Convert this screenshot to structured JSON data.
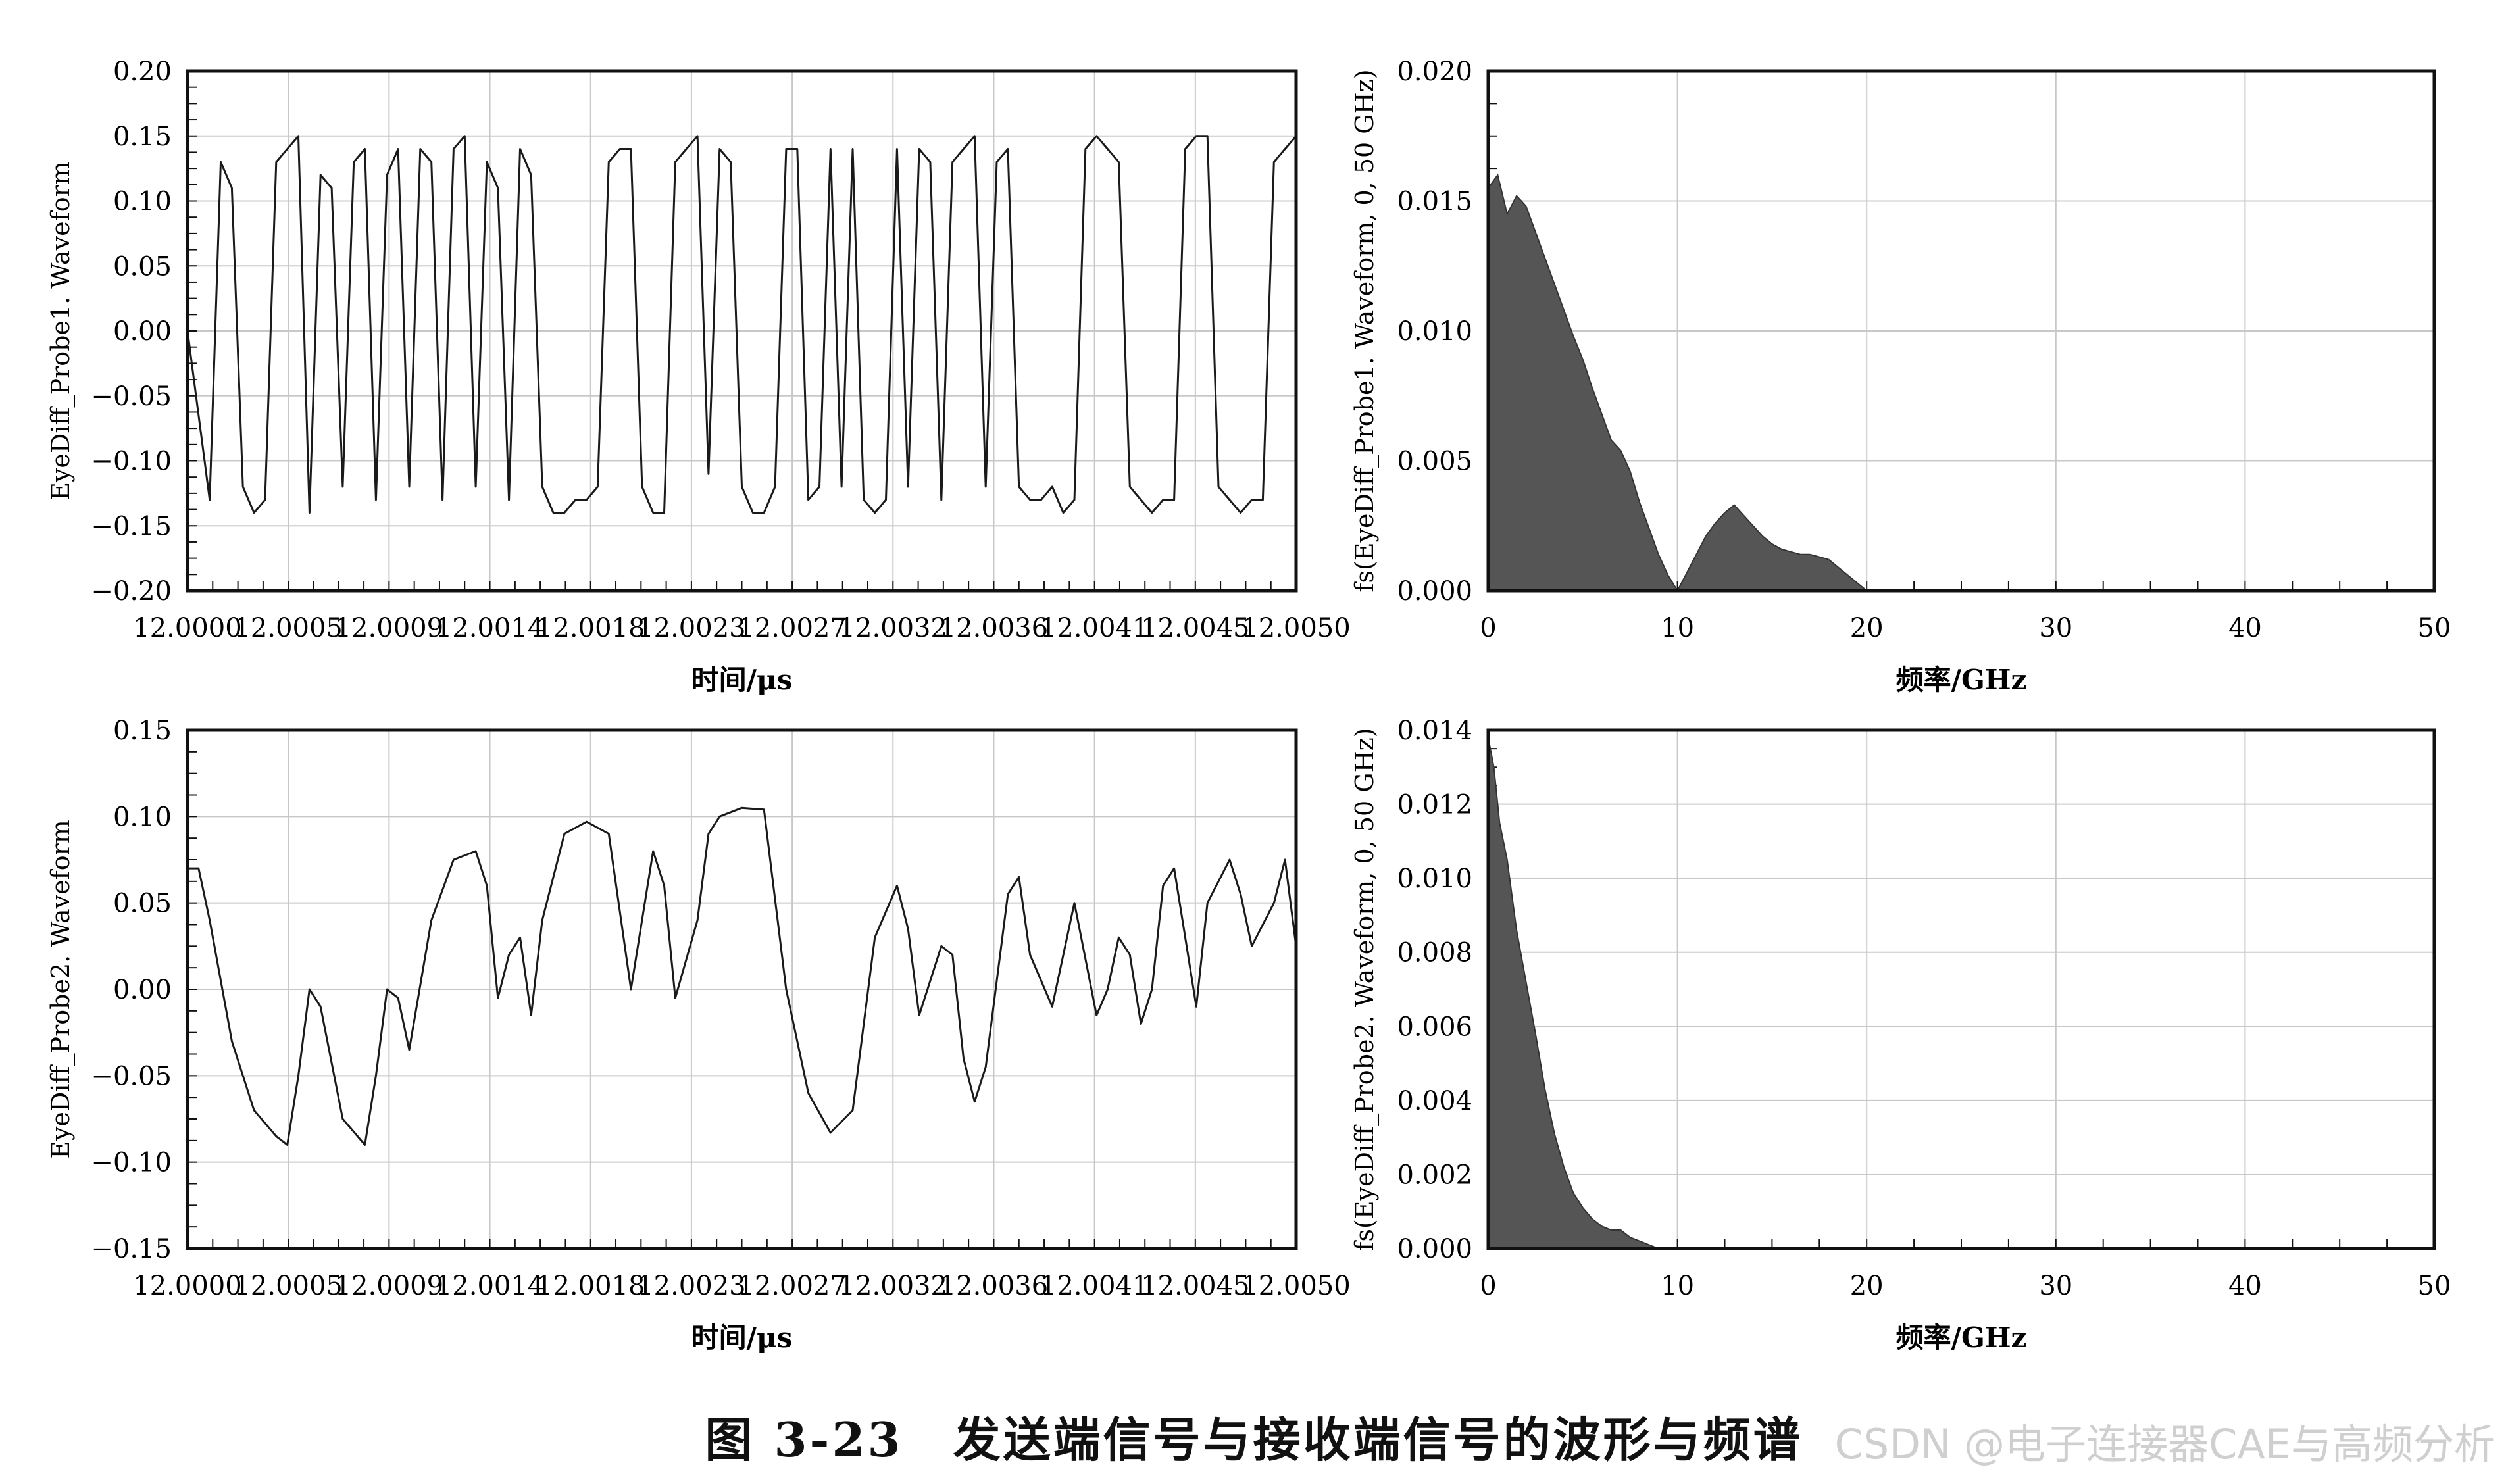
{
  "figure_caption": "图 3-23　发送端信号与接收端信号的波形与频谱",
  "watermark": "CSDN @电子连接器CAE与高频分析",
  "colors": {
    "trace": "#1a1a1a",
    "fill": "#555555",
    "grid": "#c8c8c8",
    "frame": "#111111"
  },
  "chart_data": [
    {
      "type": "line",
      "title": "",
      "xlabel": "时间/μs",
      "ylabel": "EyeDiff_Probe1. Waveform",
      "xlim": [
        12.0,
        12.005
      ],
      "ylim": [
        -0.2,
        0.2
      ],
      "grid": true,
      "x_ticks": [
        "12.0000",
        "12.0005",
        "12.0009",
        "12.0014",
        "12.0018",
        "12.0023",
        "12.0027",
        "12.0032",
        "12.0036",
        "12.0041",
        "12.0045",
        "12.0050"
      ],
      "y_ticks": [
        "0.20",
        "0.15",
        "0.10",
        "0.05",
        "0.00",
        "−0.05",
        "−0.10",
        "−0.15",
        "−0.20"
      ],
      "y_tick_values": [
        0.2,
        0.15,
        0.1,
        0.05,
        0,
        -0.05,
        -0.1,
        -0.15,
        -0.2
      ],
      "series": [
        {
          "x": [
            12.0,
            12.0001,
            12.00015,
            12.0002,
            12.00025,
            12.0003,
            12.00035,
            12.0004,
            12.00045,
            12.0005,
            12.00055,
            12.0006,
            12.00065,
            12.0007,
            12.00075,
            12.0008,
            12.00085,
            12.0009,
            12.00095,
            12.001,
            12.00105,
            12.0011,
            12.00115,
            12.0012,
            12.00125,
            12.0013,
            12.00135,
            12.0014,
            12.00145,
            12.0015,
            12.00155,
            12.0016,
            12.00165,
            12.0017,
            12.00175,
            12.0018,
            12.00185,
            12.0019,
            12.00195,
            12.002,
            12.00205,
            12.0021,
            12.00215,
            12.0022,
            12.00225,
            12.0023,
            12.00235,
            12.0024,
            12.00245,
            12.0025,
            12.00255,
            12.0026,
            12.00265,
            12.0027,
            12.00275,
            12.0028,
            12.00285,
            12.0029,
            12.00295,
            12.003,
            12.00305,
            12.0031,
            12.00315,
            12.0032,
            12.00325,
            12.0033,
            12.00335,
            12.0034,
            12.00345,
            12.0035,
            12.00355,
            12.0036,
            12.00365,
            12.0037,
            12.00375,
            12.0038,
            12.00385,
            12.0039,
            12.00395,
            12.004,
            12.00405,
            12.0041,
            12.00415,
            12.0042,
            12.00425,
            12.0043,
            12.00435,
            12.0044,
            12.00445,
            12.0045,
            12.00455,
            12.0046,
            12.00465,
            12.0047,
            12.00475,
            12.0048,
            12.00485,
            12.0049,
            12.00495,
            12.005
          ],
          "y": [
            0.0,
            -0.13,
            0.13,
            0.11,
            -0.12,
            -0.14,
            -0.13,
            0.13,
            0.14,
            0.15,
            -0.14,
            0.12,
            0.11,
            -0.12,
            0.13,
            0.14,
            -0.13,
            0.12,
            0.14,
            -0.12,
            0.14,
            0.13,
            -0.13,
            0.14,
            0.15,
            -0.12,
            0.13,
            0.11,
            -0.13,
            0.14,
            0.12,
            -0.12,
            -0.14,
            -0.14,
            -0.13,
            -0.13,
            -0.12,
            0.13,
            0.14,
            0.14,
            -0.12,
            -0.14,
            -0.14,
            0.13,
            0.14,
            0.15,
            -0.11,
            0.14,
            0.13,
            -0.12,
            -0.14,
            -0.14,
            -0.12,
            0.14,
            0.14,
            -0.13,
            -0.12,
            0.14,
            -0.12,
            0.14,
            -0.13,
            -0.14,
            -0.13,
            0.14,
            -0.12,
            0.14,
            0.13,
            -0.13,
            0.13,
            0.14,
            0.15,
            -0.12,
            0.13,
            0.14,
            -0.12,
            -0.13,
            -0.13,
            -0.12,
            -0.14,
            -0.13,
            0.14,
            0.15,
            0.14,
            0.13,
            -0.12,
            -0.13,
            -0.14,
            -0.13,
            -0.13,
            0.14,
            0.15,
            0.15,
            -0.12,
            -0.13,
            -0.14,
            -0.13,
            -0.13,
            0.13,
            0.14,
            0.15
          ]
        }
      ]
    },
    {
      "type": "area",
      "title": "",
      "xlabel": "频率/GHz",
      "ylabel": "fs(EyeDiff_Probe1. Waveform, 0, 50 GHz)",
      "xlim": [
        0,
        50
      ],
      "ylim": [
        0,
        0.02
      ],
      "grid": true,
      "x_ticks": [
        "0",
        "10",
        "20",
        "30",
        "40",
        "50"
      ],
      "x_tick_values": [
        0,
        10,
        20,
        30,
        40,
        50
      ],
      "y_ticks": [
        "0.020",
        "0.015",
        "0.010",
        "0.005",
        "0.000"
      ],
      "y_tick_values": [
        0.02,
        0.015,
        0.01,
        0.005,
        0
      ],
      "series": [
        {
          "x": [
            0,
            0.5,
            1,
            1.5,
            2,
            2.5,
            3,
            3.5,
            4,
            4.5,
            5,
            5.5,
            6,
            6.5,
            7,
            7.5,
            8,
            8.5,
            9,
            9.5,
            10,
            10.5,
            11,
            11.5,
            12,
            12.5,
            13,
            13.5,
            14,
            14.5,
            15,
            15.5,
            16,
            16.5,
            17,
            17.5,
            18,
            18.5,
            19,
            19.5,
            20,
            25,
            30,
            35,
            40,
            45,
            50
          ],
          "y": [
            0.0155,
            0.016,
            0.0145,
            0.0152,
            0.0148,
            0.0138,
            0.0128,
            0.0118,
            0.0108,
            0.0098,
            0.0089,
            0.0078,
            0.0068,
            0.0058,
            0.0054,
            0.0046,
            0.0034,
            0.0024,
            0.0014,
            0.0006,
            0.0,
            0.0007,
            0.0014,
            0.0021,
            0.0026,
            0.003,
            0.0033,
            0.0029,
            0.0025,
            0.0021,
            0.0018,
            0.0016,
            0.0015,
            0.0014,
            0.0014,
            0.0013,
            0.0012,
            0.0009,
            0.0006,
            0.0003,
            0.0,
            0.0,
            0.0,
            0.0,
            0.0,
            0.0,
            0.0
          ]
        }
      ]
    },
    {
      "type": "line",
      "title": "",
      "xlabel": "时间/μs",
      "ylabel": "EyeDiff_Probe2. Waveform",
      "xlim": [
        12.0,
        12.005
      ],
      "ylim": [
        -0.15,
        0.15
      ],
      "grid": true,
      "x_ticks": [
        "12.0000",
        "12.0005",
        "12.0009",
        "12.0014",
        "12.0018",
        "12.0023",
        "12.0027",
        "12.0032",
        "12.0036",
        "12.0041",
        "12.0045",
        "12.0050"
      ],
      "y_ticks": [
        "0.15",
        "0.10",
        "0.05",
        "0.00",
        "−0.05",
        "−0.10",
        "−0.15"
      ],
      "y_tick_values": [
        0.15,
        0.1,
        0.05,
        0,
        -0.05,
        -0.1,
        -0.15
      ],
      "series": [
        {
          "x": [
            12.0,
            12.00005,
            12.0001,
            12.0002,
            12.0003,
            12.0004,
            12.00045,
            12.0005,
            12.00055,
            12.0006,
            12.0007,
            12.0008,
            12.00085,
            12.0009,
            12.00095,
            12.001,
            12.0011,
            12.0012,
            12.0013,
            12.00135,
            12.0014,
            12.00145,
            12.0015,
            12.00155,
            12.0016,
            12.0017,
            12.0018,
            12.0019,
            12.002,
            12.0021,
            12.00215,
            12.0022,
            12.0023,
            12.00235,
            12.0024,
            12.0025,
            12.0026,
            12.0027,
            12.0028,
            12.0029,
            12.003,
            12.0031,
            12.0032,
            12.00325,
            12.0033,
            12.0034,
            12.00345,
            12.0035,
            12.00355,
            12.0036,
            12.0037,
            12.00375,
            12.0038,
            12.0039,
            12.004,
            12.0041,
            12.00415,
            12.0042,
            12.00425,
            12.0043,
            12.00435,
            12.0044,
            12.00445,
            12.0045,
            12.00455,
            12.0046,
            12.0047,
            12.00475,
            12.0048,
            12.0049,
            12.00495,
            12.005
          ],
          "y": [
            0.07,
            0.07,
            0.04,
            -0.03,
            -0.07,
            -0.085,
            -0.09,
            -0.05,
            0.0,
            -0.01,
            -0.075,
            -0.09,
            -0.05,
            0.0,
            -0.005,
            -0.035,
            0.04,
            0.075,
            0.08,
            0.06,
            -0.005,
            0.02,
            0.03,
            -0.015,
            0.04,
            0.09,
            0.097,
            0.09,
            0.0,
            0.08,
            0.06,
            -0.005,
            0.04,
            0.09,
            0.1,
            0.105,
            0.104,
            0.0,
            -0.06,
            -0.083,
            -0.07,
            0.03,
            0.06,
            0.035,
            -0.015,
            0.025,
            0.02,
            -0.04,
            -0.065,
            -0.045,
            0.055,
            0.065,
            0.02,
            -0.01,
            0.05,
            -0.015,
            0.0,
            0.03,
            0.02,
            -0.02,
            0.0,
            0.06,
            0.07,
            0.03,
            -0.01,
            0.05,
            0.075,
            0.055,
            0.025,
            0.05,
            0.075,
            0.025
          ]
        }
      ]
    },
    {
      "type": "area",
      "title": "",
      "xlabel": "频率/GHz",
      "ylabel": "fs(EyeDiff_Probe2. Waveform, 0, 50 GHz)",
      "xlim": [
        0,
        50
      ],
      "ylim": [
        0,
        0.014
      ],
      "grid": true,
      "x_ticks": [
        "0",
        "10",
        "20",
        "30",
        "40",
        "50"
      ],
      "x_tick_values": [
        0,
        10,
        20,
        30,
        40,
        50
      ],
      "y_ticks": [
        "0.014",
        "0.012",
        "0.010",
        "0.008",
        "0.006",
        "0.004",
        "0.002",
        "0.000"
      ],
      "y_tick_values": [
        0.014,
        0.012,
        0.01,
        0.008,
        0.006,
        0.004,
        0.002,
        0
      ],
      "series": [
        {
          "x": [
            0,
            0.3,
            0.6,
            1,
            1.5,
            2,
            2.5,
            3,
            3.5,
            4,
            4.5,
            5,
            5.5,
            6,
            6.5,
            7,
            7.5,
            8,
            8.5,
            9,
            10,
            20,
            30,
            40,
            50
          ],
          "y": [
            0.0138,
            0.013,
            0.0115,
            0.0105,
            0.0086,
            0.0072,
            0.0058,
            0.0043,
            0.0031,
            0.0022,
            0.0015,
            0.0011,
            0.0008,
            0.0006,
            0.0005,
            0.0005,
            0.0003,
            0.0002,
            0.0001,
            0.0,
            0.0,
            0.0,
            0.0,
            0.0,
            0.0
          ]
        }
      ]
    }
  ]
}
